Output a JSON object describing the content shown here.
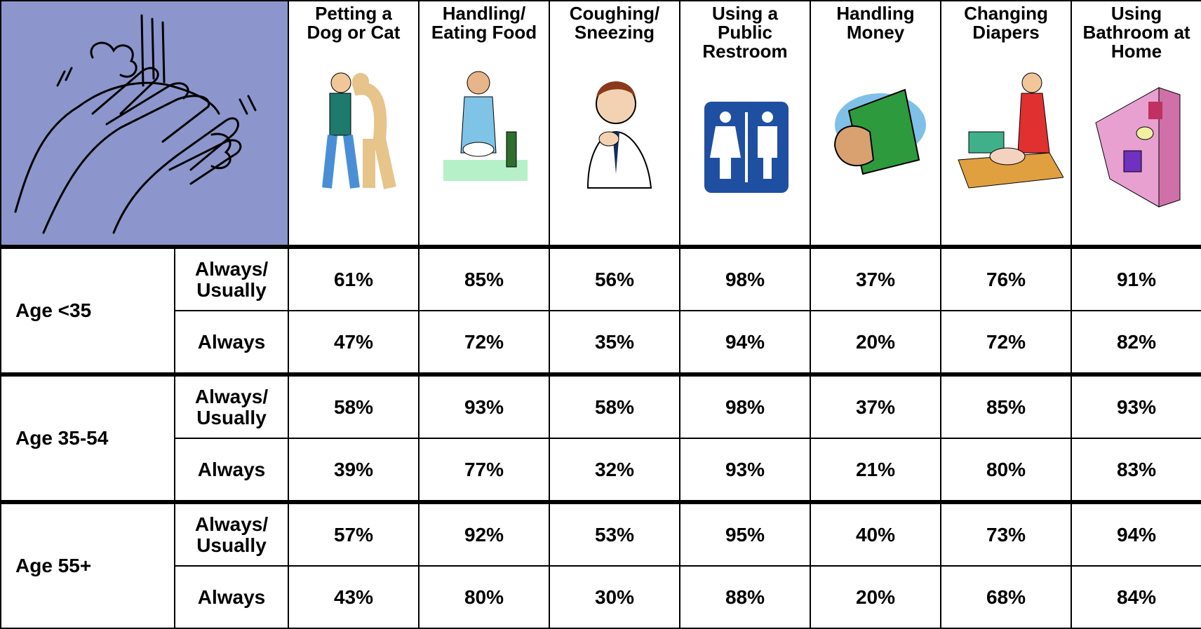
{
  "header": {
    "columns": [
      "Petting a Dog or Cat",
      "Handling/ Eating Food",
      "Coughing/ Sneezing",
      "Using a Public Restroom",
      "Handling Money",
      "Changing Diapers",
      "Using Bathroom at Home"
    ]
  },
  "rows": [
    {
      "group": "Age <35",
      "lines": [
        {
          "label": "Always/ Usually",
          "values": [
            "61%",
            "85%",
            "56%",
            "98%",
            "37%",
            "76%",
            "91%"
          ]
        },
        {
          "label": "Always",
          "values": [
            "47%",
            "72%",
            "35%",
            "94%",
            "20%",
            "72%",
            "82%"
          ]
        }
      ]
    },
    {
      "group": "Age 35-54",
      "lines": [
        {
          "label": "Always/ Usually",
          "values": [
            "58%",
            "93%",
            "58%",
            "98%",
            "37%",
            "85%",
            "93%"
          ]
        },
        {
          "label": "Always",
          "values": [
            "39%",
            "77%",
            "32%",
            "93%",
            "21%",
            "80%",
            "83%"
          ]
        }
      ]
    },
    {
      "group": "Age 55+",
      "lines": [
        {
          "label": "Always/ Usually",
          "values": [
            "57%",
            "92%",
            "53%",
            "95%",
            "40%",
            "73%",
            "94%"
          ]
        },
        {
          "label": "Always",
          "values": [
            "43%",
            "80%",
            "30%",
            "88%",
            "20%",
            "68%",
            "84%"
          ]
        }
      ]
    }
  ]
}
